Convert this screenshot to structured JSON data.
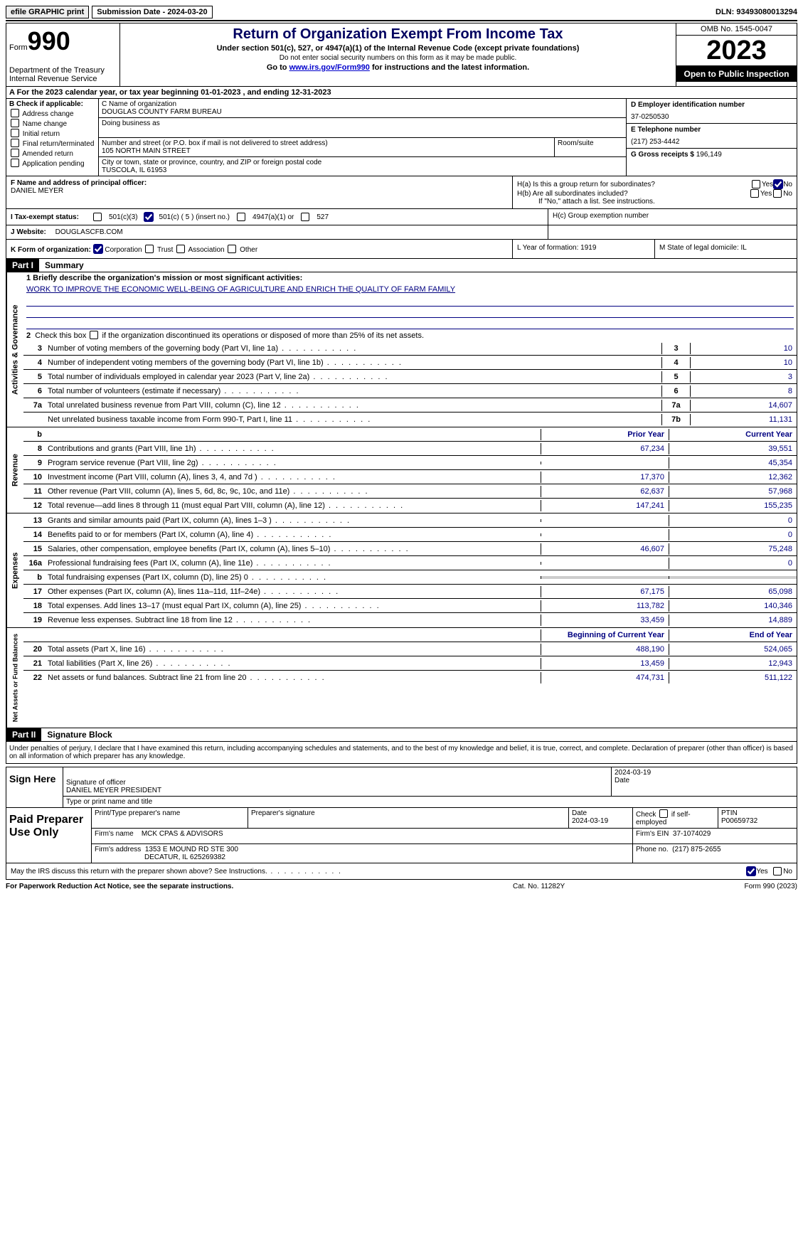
{
  "topbar": {
    "efile": "efile GRAPHIC print",
    "sub_date": "Submission Date - 2024-03-20",
    "dln": "DLN: 93493080013294"
  },
  "header": {
    "form": "Form",
    "form_num": "990",
    "dept": "Department of the Treasury Internal Revenue Service",
    "title": "Return of Organization Exempt From Income Tax",
    "subtitle": "Under section 501(c), 527, or 4947(a)(1) of the Internal Revenue Code (except private foundations)",
    "note": "Do not enter social security numbers on this form as it may be made public.",
    "link_pre": "Go to ",
    "link": "www.irs.gov/Form990",
    "link_post": " for instructions and the latest information.",
    "omb": "OMB No. 1545-0047",
    "year": "2023",
    "inspect": "Open to Public Inspection"
  },
  "row_a": "A  For the 2023 calendar year, or tax year beginning 01-01-2023    , and ending 12-31-2023",
  "col_b": {
    "hdr": "B Check if applicable:",
    "items": [
      "Address change",
      "Name change",
      "Initial return",
      "Final return/terminated",
      "Amended return",
      "Application pending"
    ]
  },
  "col_c": {
    "name_lbl": "C Name of organization",
    "name": "DOUGLAS COUNTY FARM BUREAU",
    "dba_lbl": "Doing business as",
    "addr_lbl": "Number and street (or P.O. box if mail is not delivered to street address)",
    "room_lbl": "Room/suite",
    "addr": "105 NORTH MAIN STREET",
    "city_lbl": "City or town, state or province, country, and ZIP or foreign postal code",
    "city": "TUSCOLA, IL  61953"
  },
  "col_d": {
    "ein_lbl": "D Employer identification number",
    "ein": "37-0250530",
    "tel_lbl": "E Telephone number",
    "tel": "(217) 253-4442",
    "gross_lbl": "G Gross receipts $",
    "gross": "196,149"
  },
  "fh": {
    "f_lbl": "F  Name and address of principal officer:",
    "f_name": "DANIEL MEYER",
    "ha": "H(a)  Is this a group return for subordinates?",
    "hb": "H(b)  Are all subordinates included?",
    "hb_note": "If \"No,\" attach a list. See instructions.",
    "hc": "H(c)  Group exemption number",
    "yes": "Yes",
    "no": "No"
  },
  "status": {
    "i_lbl": "I  Tax-exempt status:",
    "c3": "501(c)(3)",
    "c5": "501(c) ( 5 ) (insert no.)",
    "c4947": "4947(a)(1) or",
    "c527": "527"
  },
  "j": {
    "lbl": "J  Website:",
    "val": "DOUGLASCFB.COM"
  },
  "k": {
    "lbl": "K Form of organization:",
    "corp": "Corporation",
    "trust": "Trust",
    "assoc": "Association",
    "other": "Other",
    "l": "L Year of formation: 1919",
    "m": "M State of legal domicile: IL"
  },
  "part1": {
    "hdr": "Part I",
    "title": "Summary"
  },
  "mission": {
    "lbl": "1  Briefly describe the organization's mission or most significant activities:",
    "text": "WORK TO IMPROVE THE ECONOMIC WELL-BEING OF AGRICULTURE AND ENRICH THE QUALITY OF FARM FAMILY"
  },
  "line2": "2   Check this box       if the organization discontinued its operations or disposed of more than 25% of its net assets.",
  "sections": {
    "gov": {
      "label": "Activities & Governance"
    },
    "rev": {
      "label": "Revenue"
    },
    "exp": {
      "label": "Expenses"
    },
    "net": {
      "label": "Net Assets or Fund Balances"
    }
  },
  "gov_lines": [
    {
      "n": "3",
      "desc": "Number of voting members of the governing body (Part VI, line 1a)",
      "box": "3",
      "val": "10"
    },
    {
      "n": "4",
      "desc": "Number of independent voting members of the governing body (Part VI, line 1b)",
      "box": "4",
      "val": "10"
    },
    {
      "n": "5",
      "desc": "Total number of individuals employed in calendar year 2023 (Part V, line 2a)",
      "box": "5",
      "val": "3"
    },
    {
      "n": "6",
      "desc": "Total number of volunteers (estimate if necessary)",
      "box": "6",
      "val": "8"
    },
    {
      "n": "7a",
      "desc": "Total unrelated business revenue from Part VIII, column (C), line 12",
      "box": "7a",
      "val": "14,607"
    },
    {
      "n": "",
      "desc": "Net unrelated business taxable income from Form 990-T, Part I, line 11",
      "box": "7b",
      "val": "11,131"
    }
  ],
  "col_hdrs": {
    "prior": "Prior Year",
    "curr": "Current Year",
    "b": "b"
  },
  "rev_lines": [
    {
      "n": "8",
      "desc": "Contributions and grants (Part VIII, line 1h)",
      "p": "67,234",
      "c": "39,551"
    },
    {
      "n": "9",
      "desc": "Program service revenue (Part VIII, line 2g)",
      "p": "",
      "c": "45,354"
    },
    {
      "n": "10",
      "desc": "Investment income (Part VIII, column (A), lines 3, 4, and 7d )",
      "p": "17,370",
      "c": "12,362"
    },
    {
      "n": "11",
      "desc": "Other revenue (Part VIII, column (A), lines 5, 6d, 8c, 9c, 10c, and 11e)",
      "p": "62,637",
      "c": "57,968"
    },
    {
      "n": "12",
      "desc": "Total revenue—add lines 8 through 11 (must equal Part VIII, column (A), line 12)",
      "p": "147,241",
      "c": "155,235"
    }
  ],
  "exp_lines": [
    {
      "n": "13",
      "desc": "Grants and similar amounts paid (Part IX, column (A), lines 1–3 )",
      "p": "",
      "c": "0"
    },
    {
      "n": "14",
      "desc": "Benefits paid to or for members (Part IX, column (A), line 4)",
      "p": "",
      "c": "0"
    },
    {
      "n": "15",
      "desc": "Salaries, other compensation, employee benefits (Part IX, column (A), lines 5–10)",
      "p": "46,607",
      "c": "75,248"
    },
    {
      "n": "16a",
      "desc": "Professional fundraising fees (Part IX, column (A), line 11e)",
      "p": "",
      "c": "0"
    },
    {
      "n": "b",
      "desc": "Total fundraising expenses (Part IX, column (D), line 25) 0",
      "p": "GREY",
      "c": "GREY"
    },
    {
      "n": "17",
      "desc": "Other expenses (Part IX, column (A), lines 11a–11d, 11f–24e)",
      "p": "67,175",
      "c": "65,098"
    },
    {
      "n": "18",
      "desc": "Total expenses. Add lines 13–17 (must equal Part IX, column (A), line 25)",
      "p": "113,782",
      "c": "140,346"
    },
    {
      "n": "19",
      "desc": "Revenue less expenses. Subtract line 18 from line 12",
      "p": "33,459",
      "c": "14,889"
    }
  ],
  "net_hdrs": {
    "begin": "Beginning of Current Year",
    "end": "End of Year"
  },
  "net_lines": [
    {
      "n": "20",
      "desc": "Total assets (Part X, line 16)",
      "p": "488,190",
      "c": "524,065"
    },
    {
      "n": "21",
      "desc": "Total liabilities (Part X, line 26)",
      "p": "13,459",
      "c": "12,943"
    },
    {
      "n": "22",
      "desc": "Net assets or fund balances. Subtract line 21 from line 20",
      "p": "474,731",
      "c": "511,122"
    }
  ],
  "part2": {
    "hdr": "Part II",
    "title": "Signature Block"
  },
  "sig": {
    "decl": "Under penalties of perjury, I declare that I have examined this return, including accompanying schedules and statements, and to the best of my knowledge and belief, it is true, correct, and complete. Declaration of preparer (other than officer) is based on all information of which preparer has any knowledge.",
    "sign_here": "Sign Here",
    "sig_officer": "Signature of officer",
    "officer_name": "DANIEL MEYER  PRESIDENT",
    "type_lbl": "Type or print name and title",
    "date_lbl": "Date",
    "date": "2024-03-19"
  },
  "prep": {
    "side": "Paid Preparer Use Only",
    "name_lbl": "Print/Type preparer's name",
    "sig_lbl": "Preparer's signature",
    "date_lbl": "Date",
    "date": "2024-03-19",
    "check_lbl": "Check        if self-employed",
    "ptin_lbl": "PTIN",
    "ptin": "P00659732",
    "firm_lbl": "Firm's name",
    "firm": "MCK CPAS & ADVISORS",
    "ein_lbl": "Firm's EIN",
    "ein": "37-1074029",
    "addr_lbl": "Firm's address",
    "addr1": "1353 E MOUND RD STE 300",
    "addr2": "DECATUR, IL  625269382",
    "phone_lbl": "Phone no.",
    "phone": "(217) 875-2655"
  },
  "discuss": {
    "text": "May the IRS discuss this return with the preparer shown above? See Instructions.",
    "yes": "Yes",
    "no": "No"
  },
  "footer": {
    "l": "For Paperwork Reduction Act Notice, see the separate instructions.",
    "c": "Cat. No. 11282Y",
    "r": "Form 990 (2023)"
  }
}
